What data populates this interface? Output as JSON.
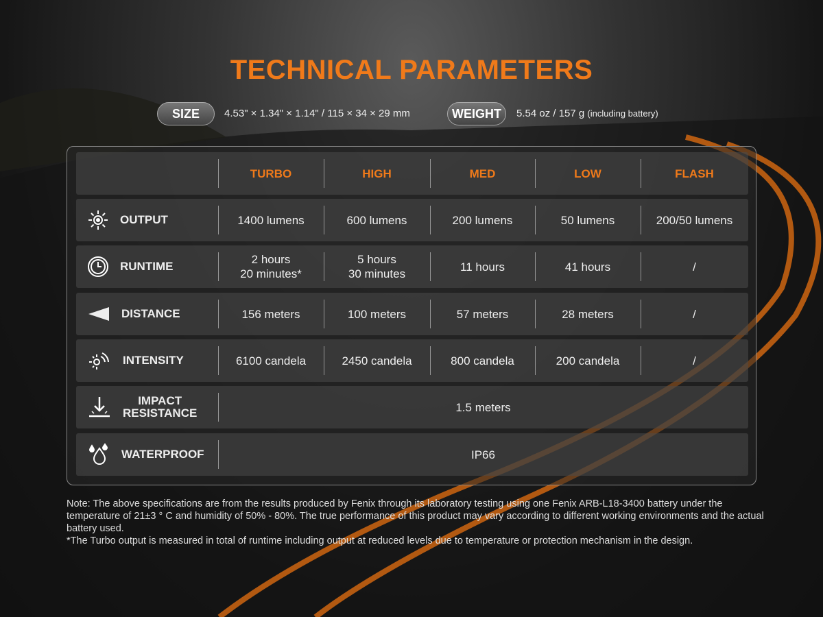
{
  "title": "TECHNICAL PARAMETERS",
  "size": {
    "label": "SIZE",
    "value": "4.53\" × 1.34\" × 1.14\" / 115 × 34 × 29 mm"
  },
  "weight": {
    "label": "WEIGHT",
    "value": "5.54 oz / 157 g",
    "note": "(including battery)"
  },
  "colors": {
    "accent": "#f07a1a"
  },
  "table": {
    "headers": [
      "TURBO",
      "HIGH",
      "MED",
      "LOW",
      "FLASH"
    ],
    "rows": [
      {
        "label": "OUTPUT",
        "icon": "sun-icon",
        "values": [
          "1400 lumens",
          "600 lumens",
          "200 lumens",
          "50 lumens",
          "200/50 lumens"
        ]
      },
      {
        "label": "RUNTIME",
        "icon": "clock-icon",
        "values": [
          "2 hours\n20 minutes*",
          "5 hours\n30 minutes",
          "11 hours",
          "41 hours",
          "/"
        ]
      },
      {
        "label": "DISTANCE",
        "icon": "beam-icon",
        "values": [
          "156 meters",
          "100 meters",
          "57 meters",
          "28 meters",
          "/"
        ]
      },
      {
        "label": "INTENSITY",
        "icon": "intensity-icon",
        "values": [
          "6100 candela",
          "2450 candela",
          "800 candela",
          "200 candela",
          "/"
        ]
      },
      {
        "label": "IMPACT\nRESISTANCE",
        "icon": "impact-icon",
        "value": "1.5 meters"
      },
      {
        "label": "WATERPROOF",
        "icon": "water-drops-icon",
        "value": "IP66"
      }
    ]
  },
  "notes": [
    "Note: The above specifications are from the results produced by Fenix through its laboratory testing using one Fenix ARB-L18-3400 battery under the temperature of 21±3  °  C and humidity of 50% - 80%. The true performance of this product may vary according to different working environments and the actual battery used.",
    "*The Turbo output is measured in total of runtime including output at reduced levels due to temperature or protection mechanism in the design."
  ]
}
